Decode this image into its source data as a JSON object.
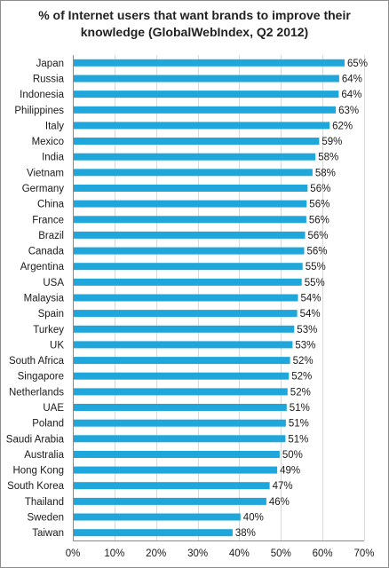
{
  "chart_data": {
    "type": "bar",
    "orientation": "horizontal",
    "title": "% of Internet users that want brands to improve their knowledge (GlobalWebIndex, Q2 2012)",
    "title_line1": "% of Internet users that want brands to improve their",
    "title_line2": "knowledge (GlobalWebIndex, Q2 2012)",
    "categories": [
      "Japan",
      "Russia",
      "Indonesia",
      "Philippines",
      "Italy",
      "Mexico",
      "India",
      "Vietnam",
      "Germany",
      "China",
      "France",
      "Brazil",
      "Canada",
      "Argentina",
      "USA",
      "Malaysia",
      "Spain",
      "Turkey",
      "UK",
      "South Africa",
      "Singapore",
      "Netherlands",
      "UAE",
      "Poland",
      "Saudi Arabia",
      "Australia",
      "Hong Kong",
      "South Korea",
      "Thailand",
      "Sweden",
      "Taiwan"
    ],
    "values": [
      65.3,
      64,
      63.9,
      63.2,
      61.7,
      59.2,
      58.3,
      57.6,
      56.4,
      56.2,
      56.1,
      55.8,
      55.6,
      55.2,
      55,
      54.1,
      53.9,
      53.2,
      52.8,
      52.2,
      51.9,
      51.6,
      51.4,
      51.2,
      51.1,
      49.7,
      49.1,
      47.3,
      46.5,
      40.3,
      38.4
    ],
    "value_labels": [
      "65%",
      "64%",
      "64%",
      "63%",
      "62%",
      "59%",
      "58%",
      "58%",
      "56%",
      "56%",
      "56%",
      "56%",
      "56%",
      "55%",
      "55%",
      "54%",
      "54%",
      "53%",
      "53%",
      "52%",
      "52%",
      "52%",
      "51%",
      "51%",
      "51%",
      "50%",
      "49%",
      "47%",
      "46%",
      "40%",
      "38%"
    ],
    "xlim": [
      0,
      70
    ],
    "xticks": [
      0,
      10,
      20,
      30,
      40,
      50,
      60,
      70
    ],
    "xtick_labels": [
      "0%",
      "10%",
      "20%",
      "30%",
      "40%",
      "50%",
      "60%",
      "70%"
    ],
    "grid": true,
    "bar_color": "#1fa7dc",
    "grid_color": "#d9d9d9"
  }
}
